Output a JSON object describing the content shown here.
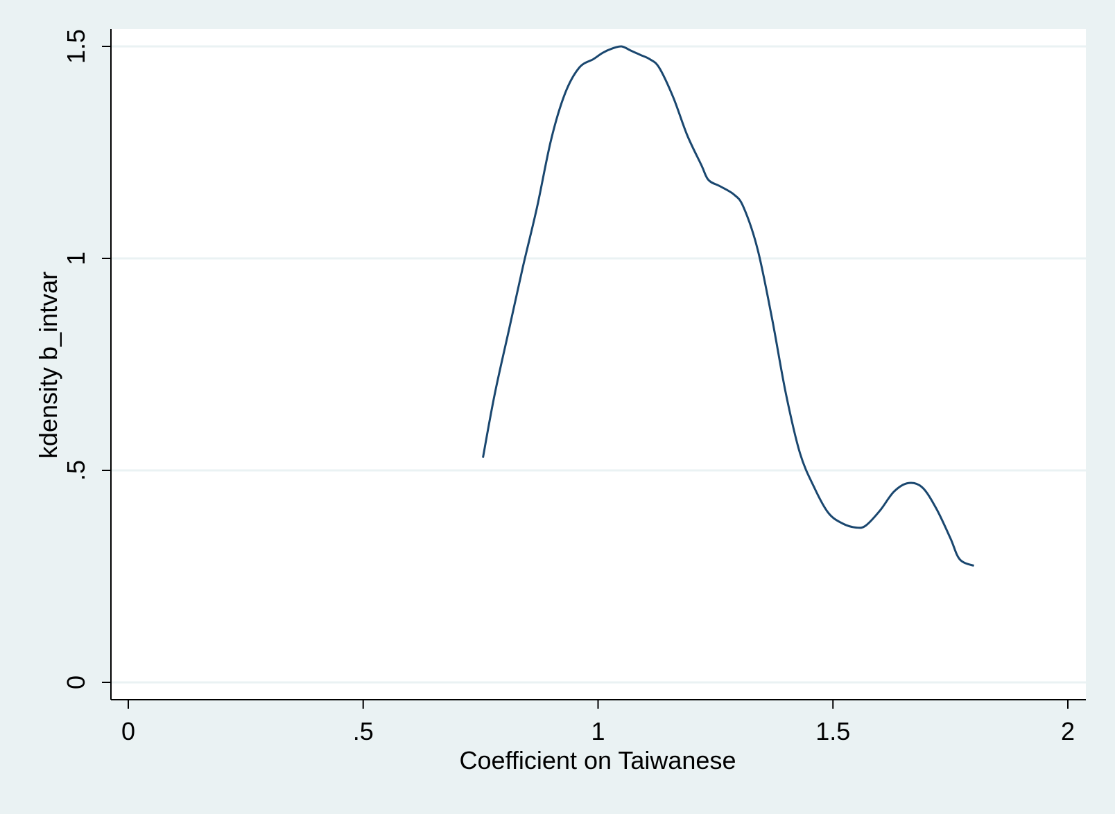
{
  "colors": {
    "background": "#eaf2f3",
    "plot_background": "#ffffff",
    "gridline": "#eaf2f3",
    "axis": "#000000",
    "line": "#1a476f"
  },
  "chart_data": {
    "type": "line",
    "title": "",
    "xlabel": "Coefficient on Taiwanese",
    "ylabel": "kdensity b_intvar",
    "xlim": [
      0,
      2
    ],
    "ylim": [
      0,
      1.5
    ],
    "x_ticks": [
      {
        "value": 0,
        "label": "0"
      },
      {
        "value": 0.5,
        "label": ".5"
      },
      {
        "value": 1,
        "label": "1"
      },
      {
        "value": 1.5,
        "label": "1.5"
      },
      {
        "value": 2,
        "label": "2"
      }
    ],
    "y_ticks": [
      {
        "value": 0,
        "label": "0"
      },
      {
        "value": 0.5,
        "label": ".5"
      },
      {
        "value": 1,
        "label": "1"
      },
      {
        "value": 1.5,
        "label": "1.5"
      }
    ],
    "grid": true,
    "legend": "none",
    "series": [
      {
        "x": [
          0.755,
          0.78,
          0.81,
          0.84,
          0.87,
          0.9,
          0.93,
          0.96,
          0.99,
          1.01,
          1.03,
          1.05,
          1.07,
          1.09,
          1.11,
          1.13,
          1.16,
          1.19,
          1.22,
          1.235,
          1.26,
          1.29,
          1.31,
          1.34,
          1.37,
          1.4,
          1.43,
          1.46,
          1.49,
          1.52,
          1.55,
          1.57,
          1.6,
          1.63,
          1.66,
          1.69,
          1.72,
          1.75,
          1.77,
          1.8
        ],
        "y": [
          0.53,
          0.68,
          0.83,
          0.98,
          1.12,
          1.28,
          1.39,
          1.45,
          1.47,
          1.485,
          1.495,
          1.5,
          1.49,
          1.48,
          1.47,
          1.45,
          1.38,
          1.29,
          1.22,
          1.185,
          1.17,
          1.15,
          1.12,
          1.02,
          0.86,
          0.68,
          0.54,
          0.46,
          0.4,
          0.375,
          0.365,
          0.37,
          0.405,
          0.45,
          0.47,
          0.46,
          0.41,
          0.34,
          0.29,
          0.275
        ]
      }
    ]
  }
}
